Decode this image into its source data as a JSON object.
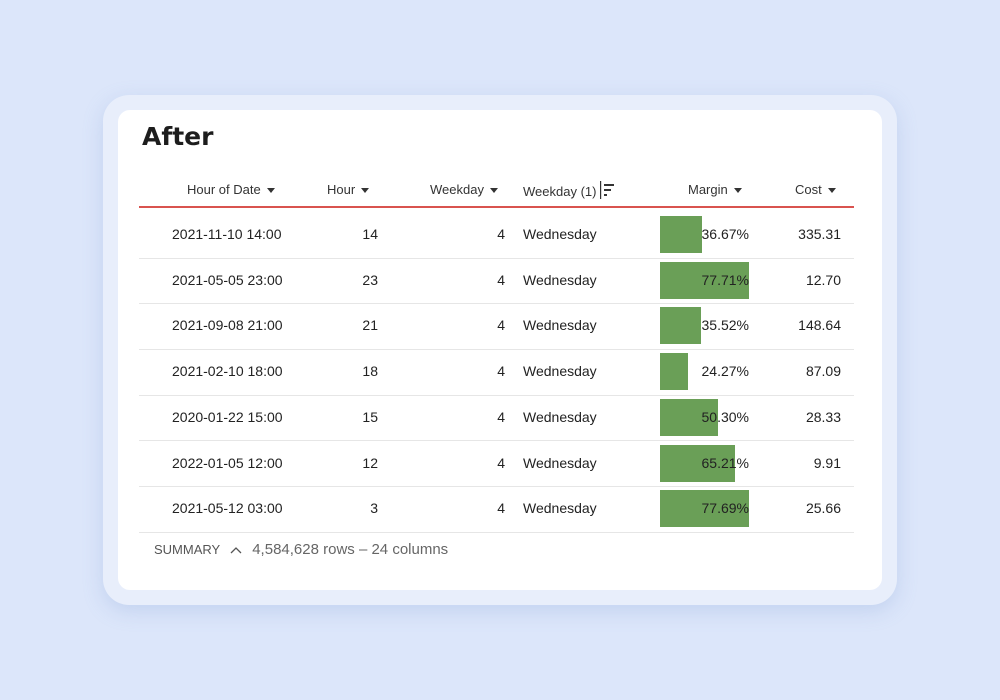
{
  "title": "After",
  "columns": [
    {
      "label": "Hour of Date",
      "icon": "caret-down-icon"
    },
    {
      "label": "Hour",
      "icon": "caret-down-icon"
    },
    {
      "label": "Weekday",
      "icon": "caret-down-icon"
    },
    {
      "label": "Weekday (1)",
      "icon": "sort-icon"
    },
    {
      "label": "Margin",
      "icon": "caret-down-icon"
    },
    {
      "label": "Cost",
      "icon": "caret-down-icon"
    }
  ],
  "rows": [
    {
      "hour_of_date": "2021-11-10 14:00",
      "hour": "14",
      "weekday": "4",
      "weekday_name": "Wednesday",
      "margin": "36.67%",
      "margin_value": 36.67,
      "cost": "335.31"
    },
    {
      "hour_of_date": "2021-05-05 23:00",
      "hour": "23",
      "weekday": "4",
      "weekday_name": "Wednesday",
      "margin": "77.71%",
      "margin_value": 77.71,
      "cost": "12.70"
    },
    {
      "hour_of_date": "2021-09-08 21:00",
      "hour": "21",
      "weekday": "4",
      "weekday_name": "Wednesday",
      "margin": "35.52%",
      "margin_value": 35.52,
      "cost": "148.64"
    },
    {
      "hour_of_date": "2021-02-10 18:00",
      "hour": "18",
      "weekday": "4",
      "weekday_name": "Wednesday",
      "margin": "24.27%",
      "margin_value": 24.27,
      "cost": "87.09"
    },
    {
      "hour_of_date": "2020-01-22 15:00",
      "hour": "15",
      "weekday": "4",
      "weekday_name": "Wednesday",
      "margin": "50.30%",
      "margin_value": 50.3,
      "cost": "28.33"
    },
    {
      "hour_of_date": "2022-01-05 12:00",
      "hour": "12",
      "weekday": "4",
      "weekday_name": "Wednesday",
      "margin": "65.21%",
      "margin_value": 65.21,
      "cost": "9.91"
    },
    {
      "hour_of_date": "2021-05-12 03:00",
      "hour": "3",
      "weekday": "4",
      "weekday_name": "Wednesday",
      "margin": "77.69%",
      "margin_value": 77.69,
      "cost": "25.66"
    }
  ],
  "summary": {
    "label": "SUMMARY",
    "icon": "chevron-up-icon",
    "count": "4,584,628 rows – 24 columns"
  },
  "colors": {
    "bar": "#6a9f57",
    "header_rule": "#d9534f",
    "background": "#dce6fa"
  }
}
